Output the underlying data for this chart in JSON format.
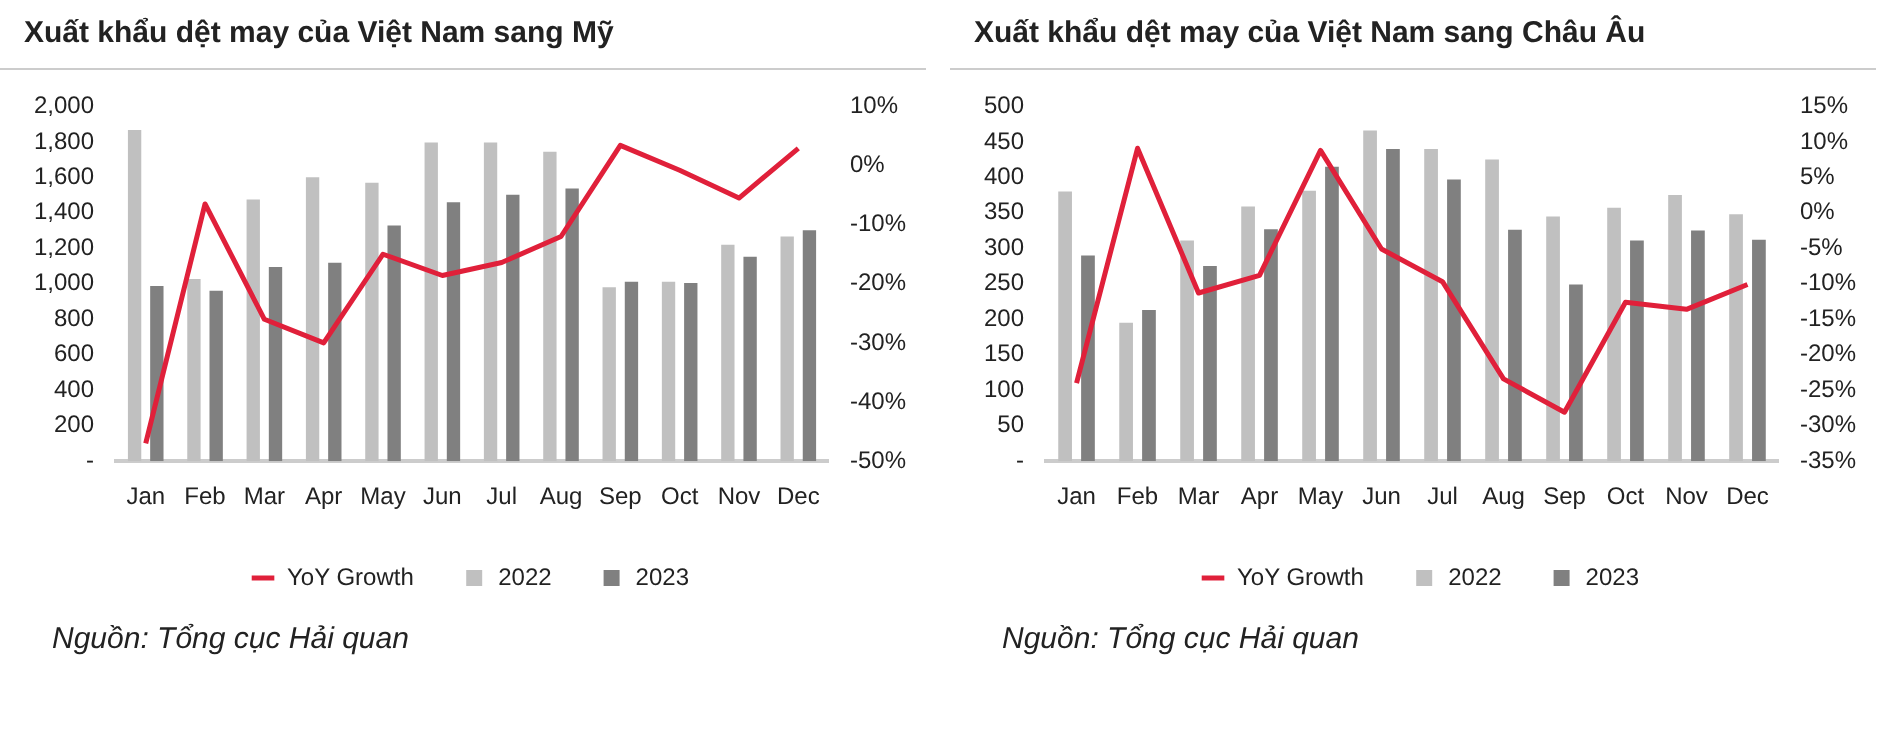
{
  "chart_data": [
    {
      "type": "bar",
      "title": "Xuất khẩu dệt may của Việt Nam sang Mỹ",
      "categories": [
        "Jan",
        "Feb",
        "Mar",
        "Apr",
        "May",
        "Jun",
        "Jul",
        "Aug",
        "Sep",
        "Oct",
        "Nov",
        "Dec"
      ],
      "series": [
        {
          "name": "2022",
          "color": "#c0c0c0",
          "values": [
            1867,
            1027,
            1475,
            1600,
            1569,
            1796,
            1796,
            1745,
            980,
            1012,
            1220,
            1267
          ]
        },
        {
          "name": "2023",
          "color": "#808080",
          "values": [
            988,
            961,
            1094,
            1118,
            1329,
            1459,
            1502,
            1537,
            1012,
            1004,
            1153,
            1302
          ]
        },
        {
          "name": "YoY Growth",
          "type": "line",
          "axis": "y2",
          "color": "#e0203a",
          "values": [
            -47,
            -6.5,
            -26,
            -30,
            -15,
            -18.6,
            -16.4,
            -12,
            3.4,
            -0.8,
            -5.5,
            2.9
          ]
        }
      ],
      "ylim": [
        0,
        2000
      ],
      "yticks": [
        {
          "value": 0,
          "label": "-"
        },
        {
          "value": 200,
          "label": "200"
        },
        {
          "value": 400,
          "label": "400"
        },
        {
          "value": 600,
          "label": "600"
        },
        {
          "value": 800,
          "label": "800"
        },
        {
          "value": 1000,
          "label": "1,000"
        },
        {
          "value": 1200,
          "label": "1,200"
        },
        {
          "value": 1400,
          "label": "1,400"
        },
        {
          "value": 1600,
          "label": "1,600"
        },
        {
          "value": 1800,
          "label": "1,800"
        },
        {
          "value": 2000,
          "label": "2,000"
        }
      ],
      "y2lim": [
        -50,
        10
      ],
      "y2ticks": [
        {
          "value": -50,
          "label": "-50%"
        },
        {
          "value": -40,
          "label": "-40%"
        },
        {
          "value": -30,
          "label": "-30%"
        },
        {
          "value": -20,
          "label": "-20%"
        },
        {
          "value": -10,
          "label": "-10%"
        },
        {
          "value": 0,
          "label": "0%"
        },
        {
          "value": 10,
          "label": "10%"
        }
      ],
      "grid": false,
      "legend": "bottom",
      "marker": "none",
      "line_style": "solid",
      "annotations": [
        "Nguồn: Tổng cục Hải quan"
      ]
    },
    {
      "type": "bar",
      "title": "Xuất khẩu dệt may của Việt Nam sang Châu Âu",
      "categories": [
        "Jan",
        "Feb",
        "Mar",
        "Apr",
        "May",
        "Jun",
        "Jul",
        "Aug",
        "Sep",
        "Oct",
        "Nov",
        "Dec"
      ],
      "series": [
        {
          "name": "2022",
          "color": "#c0c0c0",
          "values": [
            380,
            195,
            311,
            359,
            381,
            466,
            440,
            425,
            345,
            357,
            375,
            348
          ]
        },
        {
          "name": "2023",
          "color": "#808080",
          "values": [
            290,
            213,
            275,
            327,
            415,
            440,
            397,
            326,
            249,
            311,
            325,
            312
          ]
        },
        {
          "name": "YoY Growth",
          "type": "line",
          "axis": "y2",
          "color": "#e0203a",
          "values": [
            -24,
            9.1,
            -11.3,
            -8.8,
            8.8,
            -5.1,
            -9.7,
            -23.4,
            -28.1,
            -12.6,
            -13.6,
            -10.1
          ]
        }
      ],
      "ylim": [
        0,
        500
      ],
      "yticks": [
        {
          "value": 0,
          "label": "-"
        },
        50,
        100,
        150,
        200,
        250,
        300,
        350,
        400,
        450,
        500
      ],
      "y2lim": [
        -35,
        15
      ],
      "y2ticks": [
        {
          "value": -35,
          "label": "-35%"
        },
        {
          "value": -30,
          "label": "-30%"
        },
        {
          "value": -25,
          "label": "-25%"
        },
        {
          "value": -20,
          "label": "-20%"
        },
        {
          "value": -15,
          "label": "-15%"
        },
        {
          "value": -10,
          "label": "-10%"
        },
        {
          "value": -5,
          "label": "-5%"
        },
        {
          "value": 0,
          "label": "0%"
        },
        {
          "value": 5,
          "label": "5%"
        },
        {
          "value": 10,
          "label": "10%"
        },
        {
          "value": 15,
          "label": "15%"
        }
      ],
      "grid": false,
      "legend": "bottom",
      "marker": "none",
      "line_style": "solid",
      "annotations": [
        "Nguồn: Tổng cục Hải quan"
      ]
    }
  ]
}
